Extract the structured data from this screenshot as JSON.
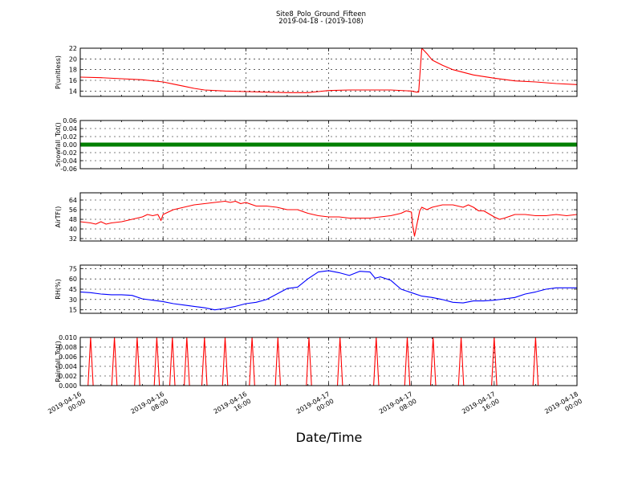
{
  "figure": {
    "title": "Site8_Polo_Ground_Fifteen",
    "subtitle": "2019-04-18 - (2019-108)",
    "xlabel": "Date/Time",
    "xticks": [
      [
        "2019-04-16",
        "00:00"
      ],
      [
        "2019-04-16",
        "08:00"
      ],
      [
        "2019-04-16",
        "16:00"
      ],
      [
        "2019-04-17",
        "00:00"
      ],
      [
        "2019-04-17",
        "08:00"
      ],
      [
        "2019-04-17",
        "16:00"
      ],
      [
        "2019-04-18",
        "00:00"
      ]
    ]
  },
  "colors": {
    "pressure": "#ff0000",
    "snowfall": "#007f00",
    "airtemp": "#ff0000",
    "rh": "#0000ff",
    "rainfall": "#ff0000"
  },
  "chart_data": [
    {
      "type": "line",
      "ylabel": "P(unitless)",
      "x_unit": "hours since 2019-04-16 00:00",
      "xlim": [
        0,
        48
      ],
      "ylim": [
        13,
        22
      ],
      "yticks": [
        14,
        16,
        18,
        20,
        22
      ],
      "grid": true,
      "series": [
        {
          "color": "#ff0000",
          "x": [
            0,
            2,
            4,
            6,
            8,
            9,
            10,
            11,
            12,
            14,
            16,
            18,
            20,
            22,
            23,
            24,
            26,
            28,
            30,
            32,
            32.5,
            32.7,
            33,
            33.5,
            34,
            35,
            36,
            38,
            40,
            42,
            44,
            46,
            48
          ],
          "y": [
            16.6,
            16.5,
            16.3,
            16.1,
            15.7,
            15.3,
            14.9,
            14.5,
            14.2,
            14.0,
            13.9,
            13.8,
            13.7,
            13.7,
            13.9,
            14.1,
            14.2,
            14.2,
            14.2,
            14.0,
            13.8,
            13.8,
            22.0,
            21.0,
            19.8,
            18.8,
            18.0,
            17.0,
            16.4,
            15.9,
            15.7,
            15.4,
            15.2
          ]
        }
      ]
    },
    {
      "type": "scatter",
      "ylabel": "Snowfall_Tot()",
      "x_unit": "hours since 2019-04-16 00:00",
      "xlim": [
        0,
        48
      ],
      "ylim": [
        -0.06,
        0.06
      ],
      "yticks": [
        -0.06,
        -0.04,
        -0.02,
        0.0,
        0.02,
        0.04,
        0.06
      ],
      "grid": true,
      "series": [
        {
          "color": "#007f00",
          "x_range": [
            0,
            48
          ],
          "y_constant": 0.0
        }
      ]
    },
    {
      "type": "line",
      "ylabel": "AirTF()",
      "x_unit": "hours since 2019-04-16 00:00",
      "xlim": [
        0,
        48
      ],
      "ylim": [
        30,
        70
      ],
      "yticks": [
        32,
        40,
        48,
        56,
        64
      ],
      "grid": true,
      "series": [
        {
          "color": "#ff0000",
          "x": [
            0,
            1,
            1.5,
            2,
            2.5,
            3,
            4,
            5,
            6,
            6.5,
            7,
            7.5,
            7.8,
            8,
            8.5,
            9,
            10,
            11,
            12,
            13,
            14,
            14.5,
            15,
            15.5,
            16,
            17,
            18,
            19,
            20,
            21,
            22,
            23,
            24,
            25,
            26,
            27,
            28,
            29,
            30,
            31,
            31.5,
            32,
            32.1,
            32.3,
            32.8,
            33,
            33.5,
            34,
            35,
            36,
            36.5,
            37,
            37.5,
            38,
            38.5,
            39,
            40,
            40.5,
            41,
            42,
            43,
            44,
            45,
            46,
            47,
            48
          ],
          "y": [
            46,
            45,
            44,
            46,
            44,
            45,
            46,
            48,
            50,
            52,
            51,
            52,
            47,
            52,
            54,
            56,
            58,
            60,
            61,
            62,
            63,
            62,
            63,
            61,
            62,
            59,
            59,
            58,
            56,
            56,
            53,
            51,
            50,
            50,
            49,
            49,
            49,
            50,
            51,
            53,
            55,
            54,
            44,
            34,
            55,
            58,
            56,
            58,
            60,
            60,
            59,
            58,
            60,
            58,
            55,
            55,
            50,
            48,
            49,
            52,
            52,
            51,
            51,
            52,
            51,
            52
          ]
        }
      ]
    },
    {
      "type": "line",
      "ylabel": "RH(%)",
      "x_unit": "hours since 2019-04-16 00:00",
      "xlim": [
        0,
        48
      ],
      "ylim": [
        10,
        80
      ],
      "yticks": [
        15,
        30,
        45,
        60,
        75
      ],
      "grid": true,
      "series": [
        {
          "color": "#0000ff",
          "x": [
            0,
            1,
            2,
            3,
            4,
            5,
            6,
            7,
            8,
            9,
            10,
            11,
            12,
            13,
            14,
            15,
            16,
            17,
            18,
            19,
            20,
            20.5,
            21,
            22,
            23,
            24,
            25,
            26,
            27,
            28,
            28.5,
            29,
            30,
            31,
            32,
            33,
            34,
            35,
            36,
            37,
            38,
            39,
            40,
            41,
            42,
            43,
            44,
            45,
            46,
            47,
            48
          ],
          "y": [
            41,
            40,
            38,
            37,
            37,
            36,
            31,
            29,
            27,
            24,
            22,
            20,
            18,
            15,
            17,
            20,
            24,
            26,
            30,
            38,
            46,
            47,
            48,
            60,
            70,
            72,
            69,
            65,
            71,
            70,
            61,
            63,
            58,
            45,
            40,
            35,
            33,
            30,
            26,
            25,
            28,
            28,
            29,
            31,
            33,
            38,
            41,
            45,
            47,
            47,
            47
          ]
        }
      ]
    },
    {
      "type": "line",
      "ylabel": "Rainfall_Tot()",
      "x_unit": "hours since 2019-04-16 00:00",
      "xlim": [
        0,
        48
      ],
      "ylim": [
        0,
        0.01
      ],
      "yticks": [
        0.0,
        0.002,
        0.004,
        0.006,
        0.008,
        0.01
      ],
      "grid": true,
      "series": [
        {
          "color": "#ff0000",
          "spikes_x": [
            1.0,
            3.3,
            5.5,
            7.4,
            8.9,
            10.3,
            12.0,
            14.0,
            16.6,
            19.1,
            22.1,
            25.1,
            28.6,
            31.6,
            34.1,
            36.8,
            40.0,
            44.0
          ],
          "spike_value": 0.01,
          "baseline": 0.0
        }
      ]
    }
  ]
}
